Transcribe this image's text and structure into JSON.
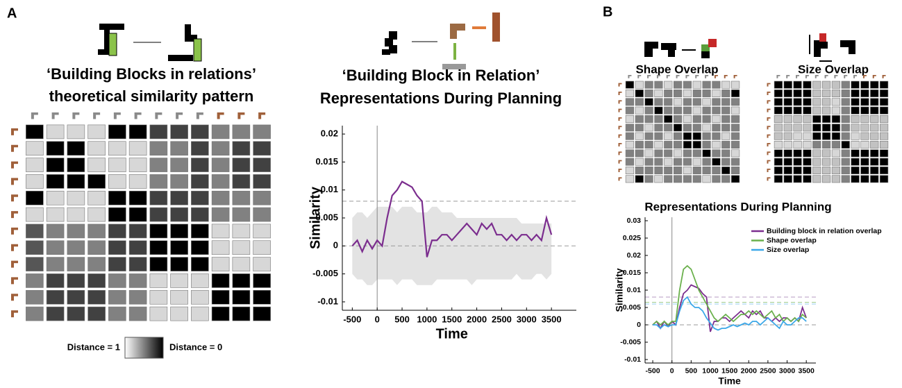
{
  "panel_labels": [
    "A",
    "B"
  ],
  "chart_data": [
    {
      "type": "heatmap",
      "title": [
        "‘Building Blocks in relations’",
        "theoretical similarity pattern"
      ],
      "colorbar_labels": [
        "Distance = 1",
        "Distance = 0"
      ],
      "values": [
        [
          0,
          1,
          1,
          1,
          0,
          0,
          0.3,
          0.3,
          0.3,
          0.6,
          0.6,
          0.6
        ],
        [
          1,
          0,
          0,
          1,
          1,
          1,
          0.6,
          0.6,
          0.3,
          0.6,
          0.3,
          0.3
        ],
        [
          1,
          0,
          0,
          1,
          1,
          1,
          0.6,
          0.6,
          0.3,
          0.6,
          0.3,
          0.3
        ],
        [
          1,
          0,
          0,
          0,
          1,
          1,
          0.6,
          0.6,
          0.3,
          0.6,
          0.3,
          0.3
        ],
        [
          0,
          1,
          1,
          1,
          0,
          0,
          0.3,
          0.3,
          0.3,
          0.6,
          0.6,
          0.6
        ],
        [
          1,
          1,
          1,
          1,
          0,
          0,
          0.3,
          0.3,
          0.3,
          0.6,
          0.6,
          0.6
        ],
        [
          0.4,
          0.6,
          0.6,
          0.6,
          0.3,
          0.3,
          0,
          0,
          0,
          1,
          1,
          1
        ],
        [
          0.4,
          0.6,
          0.6,
          0.6,
          0.3,
          0.3,
          0,
          0,
          0,
          1,
          1,
          1
        ],
        [
          0.4,
          0.6,
          0.6,
          0.6,
          0.3,
          0.3,
          0,
          0,
          0,
          1,
          1,
          1
        ],
        [
          0.6,
          0.3,
          0.3,
          0.3,
          0.6,
          0.6,
          1,
          1,
          1,
          0,
          0,
          0
        ],
        [
          0.6,
          0.3,
          0.3,
          0.3,
          0.6,
          0.6,
          1,
          1,
          1,
          0,
          0,
          0
        ],
        [
          0.6,
          0.3,
          0.3,
          0.3,
          0.6,
          0.6,
          1,
          1,
          1,
          0,
          0,
          0
        ]
      ]
    },
    {
      "type": "line",
      "title": [
        "‘Building Block in Relation’",
        "Representations During Planning"
      ],
      "xlabel": "Time",
      "ylabel": "Similarity",
      "xlim": [
        -700,
        4000
      ],
      "ylim": [
        -0.0115,
        0.0215
      ],
      "xticks": [
        -500,
        0,
        500,
        1000,
        1500,
        2000,
        2500,
        3000,
        3500
      ],
      "yticks": [
        -0.01,
        -0.005,
        0,
        0.005,
        0.01,
        0.015,
        0.02
      ],
      "x": [
        -500,
        -400,
        -300,
        -200,
        -100,
        0,
        100,
        200,
        300,
        400,
        500,
        600,
        700,
        800,
        900,
        1000,
        1100,
        1200,
        1300,
        1400,
        1500,
        1600,
        1700,
        1800,
        1900,
        2000,
        2100,
        2200,
        2300,
        2400,
        2500,
        2600,
        2700,
        2800,
        2900,
        3000,
        3100,
        3200,
        3300,
        3400,
        3500
      ],
      "series": [
        {
          "color": "#7b2d8e",
          "values": [
            0,
            0.001,
            -0.001,
            0.001,
            -0.0005,
            0.001,
            0,
            0.005,
            0.009,
            0.01,
            0.0115,
            0.011,
            0.0105,
            0.009,
            0.008,
            -0.002,
            0.001,
            0.001,
            0.002,
            0.002,
            0.001,
            0.002,
            0.003,
            0.004,
            0.003,
            0.002,
            0.004,
            0.003,
            0.004,
            0.002,
            0.002,
            0.001,
            0.002,
            0.001,
            0.002,
            0.002,
            0.001,
            0.002,
            0.001,
            0.005,
            0.002
          ]
        }
      ],
      "band": {
        "color": "#e3e3e3",
        "lower": [
          -0.005,
          -0.006,
          -0.006,
          -0.007,
          -0.007,
          -0.006,
          -0.006,
          -0.006,
          -0.006,
          -0.007,
          -0.006,
          -0.006,
          -0.006,
          -0.007,
          -0.007,
          -0.007,
          -0.007,
          -0.006,
          -0.006,
          -0.006,
          -0.006,
          -0.006,
          -0.006,
          -0.006,
          -0.007,
          -0.006,
          -0.006,
          -0.006,
          -0.006,
          -0.006,
          -0.006,
          -0.006,
          -0.006,
          -0.005,
          -0.006,
          -0.006,
          -0.006,
          -0.005,
          -0.005,
          -0.006,
          -0.005
        ],
        "upper": [
          0.005,
          0.006,
          0.006,
          0.005,
          0.006,
          0.007,
          0.007,
          0.007,
          0.007,
          0.006,
          0.007,
          0.007,
          0.007,
          0.006,
          0.006,
          0.006,
          0.007,
          0.007,
          0.006,
          0.006,
          0.006,
          0.005,
          0.005,
          0.005,
          0.005,
          0.005,
          0.005,
          0.005,
          0.005,
          0.005,
          0.005,
          0.005,
          0.005,
          0.005,
          0.004,
          0.004,
          0.004,
          0.004,
          0.004,
          0.004,
          0.004
        ]
      },
      "reference_lines": [
        {
          "value": 0.008,
          "color": "#999999"
        },
        {
          "value": 0,
          "color": "#999999"
        }
      ]
    },
    {
      "type": "heatmap",
      "title": [
        "Shape Overlap"
      ],
      "values": [
        [
          0,
          1,
          0.6,
          0.6,
          1,
          0.6,
          0.6,
          1,
          0.6,
          0.6,
          1,
          1
        ],
        [
          1,
          0,
          0.6,
          1,
          0.6,
          0.6,
          1,
          0.6,
          0.6,
          1,
          0.6,
          0
        ],
        [
          0.6,
          0.6,
          0,
          0.6,
          0.6,
          1,
          0.6,
          0.6,
          1,
          0.6,
          0.6,
          0.6
        ],
        [
          0.6,
          1,
          0.6,
          0,
          0.6,
          0.6,
          0.6,
          1,
          0.6,
          0.6,
          0.6,
          1
        ],
        [
          1,
          0.6,
          0.6,
          0.6,
          0,
          0.6,
          1,
          0.6,
          0.6,
          1,
          0.6,
          0.6
        ],
        [
          0.6,
          0.6,
          1,
          0.6,
          0.6,
          0,
          0.6,
          0.6,
          1,
          0.6,
          0.6,
          0.6
        ],
        [
          0.6,
          1,
          0.6,
          0.6,
          1,
          0.6,
          0,
          0,
          0.6,
          0.6,
          1,
          0.6
        ],
        [
          1,
          0.6,
          0.6,
          1,
          0.6,
          0.6,
          0,
          0,
          0.6,
          1,
          0.6,
          0.6
        ],
        [
          0.6,
          0.6,
          1,
          0.6,
          0.6,
          1,
          0.6,
          0.6,
          0,
          0.6,
          0.6,
          1
        ],
        [
          0.6,
          1,
          0.6,
          0.6,
          1,
          0.6,
          0.6,
          1,
          0.6,
          0,
          0.6,
          0.6
        ],
        [
          1,
          0.6,
          0.6,
          0.6,
          0.6,
          0.6,
          1,
          0.6,
          0.6,
          0.6,
          0,
          0.6
        ],
        [
          1,
          0,
          0.6,
          1,
          0.6,
          0.6,
          0.6,
          0.6,
          1,
          0.6,
          0.6,
          0
        ]
      ]
    },
    {
      "type": "heatmap",
      "title": [
        "Size Overlap"
      ],
      "values": [
        [
          0,
          0,
          0,
          0,
          0.9,
          0.9,
          0.9,
          0.6,
          0,
          0,
          0,
          0
        ],
        [
          0,
          0,
          0,
          0,
          0.9,
          0.9,
          0.9,
          0.6,
          0,
          0,
          0,
          0
        ],
        [
          0,
          0,
          0,
          0,
          0.9,
          0.9,
          1,
          0.6,
          0,
          0,
          0,
          0
        ],
        [
          0,
          0,
          0,
          0,
          0.9,
          0.9,
          1,
          0.6,
          0,
          0,
          0,
          0
        ],
        [
          0.9,
          0.9,
          0.9,
          0.9,
          0,
          0,
          0,
          0.6,
          0.9,
          0.9,
          0.9,
          0.9
        ],
        [
          0.9,
          0.9,
          0.9,
          0.9,
          0,
          0,
          0,
          0.6,
          0.9,
          0.9,
          0.9,
          0.9
        ],
        [
          0.9,
          0.9,
          1,
          1,
          0,
          0,
          0,
          0.6,
          1,
          0.9,
          0.9,
          0.9
        ],
        [
          1,
          1,
          1,
          1,
          0.6,
          0.6,
          0.6,
          0,
          1,
          1,
          0.9,
          0.9
        ],
        [
          0,
          0,
          0,
          0,
          0.9,
          0.9,
          1,
          0.6,
          0,
          0,
          0,
          0
        ],
        [
          0,
          0,
          0,
          0,
          0.9,
          0.9,
          0.9,
          0.6,
          0,
          0,
          0,
          0
        ],
        [
          0,
          0,
          0,
          0,
          0.9,
          0.9,
          0.9,
          0.6,
          0,
          0,
          0,
          0
        ],
        [
          0,
          0,
          0,
          0,
          0.9,
          0.9,
          0.9,
          0.6,
          0,
          0,
          0,
          0
        ]
      ]
    },
    {
      "type": "line",
      "title": [
        "Representations During Planning"
      ],
      "xlabel": "Time",
      "ylabel": "Similarity",
      "legend": "top-right",
      "xlim": [
        -700,
        3750
      ],
      "ylim": [
        -0.011,
        0.031
      ],
      "xticks": [
        -500,
        0,
        500,
        1000,
        1500,
        2000,
        2500,
        3000,
        3500
      ],
      "yticks": [
        -0.01,
        -0.005,
        0,
        0.005,
        0.01,
        0.015,
        0.02,
        0.025,
        0.03
      ],
      "x": [
        -500,
        -400,
        -300,
        -200,
        -100,
        0,
        100,
        200,
        300,
        400,
        500,
        600,
        700,
        800,
        900,
        1000,
        1100,
        1200,
        1300,
        1400,
        1500,
        1600,
        1700,
        1800,
        1900,
        2000,
        2100,
        2200,
        2300,
        2400,
        2500,
        2600,
        2700,
        2800,
        2900,
        3000,
        3100,
        3200,
        3300,
        3400,
        3500
      ],
      "series": [
        {
          "name": "Building block in relation overlap",
          "color": "#7b2d8e",
          "values": [
            0,
            0.001,
            -0.001,
            0.001,
            -0.0005,
            0.001,
            0,
            0.005,
            0.009,
            0.01,
            0.0115,
            0.011,
            0.0105,
            0.009,
            0.008,
            -0.002,
            0.001,
            0.001,
            0.002,
            0.002,
            0.001,
            0.002,
            0.003,
            0.004,
            0.003,
            0.002,
            0.004,
            0.003,
            0.004,
            0.002,
            0.002,
            0.001,
            0.002,
            0.001,
            0.002,
            0.002,
            0.001,
            0.002,
            0.001,
            0.005,
            0.002
          ]
        },
        {
          "name": "Shape overlap",
          "color": "#6ab04c",
          "values": [
            0,
            0.001,
            0,
            0.001,
            0,
            0.001,
            0.001,
            0.01,
            0.016,
            0.017,
            0.016,
            0.013,
            0.01,
            0.008,
            0.006,
            0.004,
            0.002,
            0.001,
            0.002,
            0.003,
            0.002,
            0.001,
            0.002,
            0.003,
            0.003,
            0.004,
            0.003,
            0.004,
            0.003,
            0.002,
            0.003,
            0.004,
            0.002,
            0.003,
            0.001,
            0.002,
            0.001,
            0.002,
            0.001,
            0.003,
            0.002
          ]
        },
        {
          "name": "Size overlap",
          "color": "#3aa7e8",
          "values": [
            0,
            0,
            -0.001,
            0,
            -0.0005,
            0,
            0,
            0.004,
            0.007,
            0.008,
            0.006,
            0.005,
            0.005,
            0.004,
            0.002,
            0.0005,
            -0.001,
            -0.0015,
            -0.001,
            -0.001,
            -0.0005,
            0,
            -0.0005,
            0,
            0.0005,
            0,
            0.001,
            0.001,
            0,
            0.001,
            0.002,
            0.001,
            0,
            -0.001,
            0.001,
            0,
            0,
            0.001,
            0.002,
            0.002,
            0.001
          ]
        }
      ],
      "reference_lines": [
        {
          "value": 0.008,
          "color": "#b49ac0"
        },
        {
          "value": 0.0065,
          "color": "#9fcc8c"
        },
        {
          "value": 0.006,
          "color": "#93cdee"
        },
        {
          "value": 0,
          "color": "#999999"
        }
      ]
    }
  ]
}
